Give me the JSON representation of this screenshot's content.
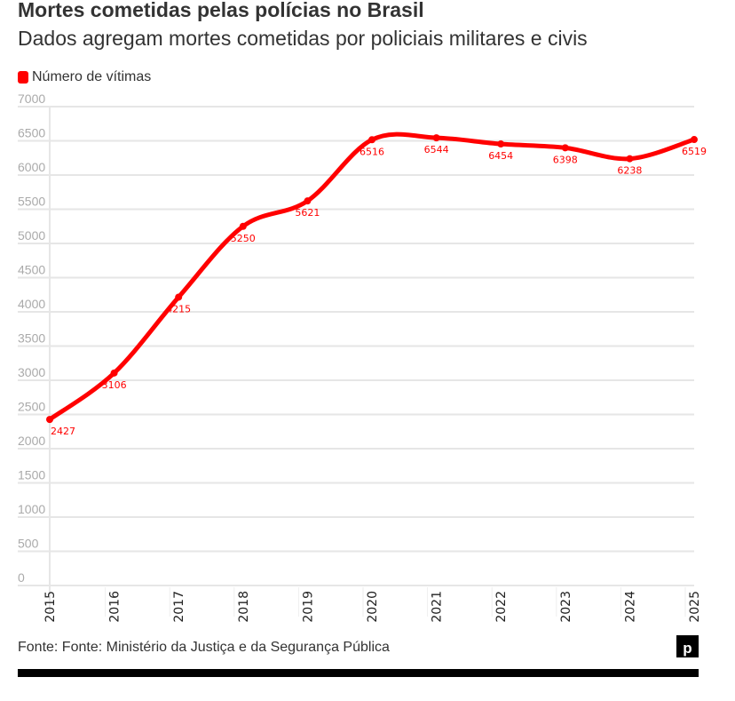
{
  "header": {
    "title": "Mortes cometidas pelas polícias no Brasil",
    "subtitle": "Dados agregam mortes cometidas por policiais militares e civis"
  },
  "legend": {
    "label": "Número de vítimas",
    "color": "#ff0000"
  },
  "footer": {
    "source": "Fonte: Fonte: Ministério da Justiça e da Segurança Pública",
    "logo": "p"
  },
  "chart_data": {
    "type": "line",
    "title": "Mortes cometidas pelas polícias no Brasil",
    "xlabel": "",
    "ylabel": "",
    "x": [
      "2015",
      "2016",
      "2017",
      "2018",
      "2019",
      "2020",
      "2021",
      "2022",
      "2023",
      "2024",
      "2025"
    ],
    "series": [
      {
        "name": "Número de vítimas",
        "color": "#ff0000",
        "values": [
          2427,
          3106,
          4215,
          5250,
          5621,
          6516,
          6544,
          6454,
          6398,
          6238,
          6519
        ]
      }
    ],
    "yticks": [
      0,
      500,
      1000,
      1500,
      2000,
      2500,
      3000,
      3500,
      4000,
      4500,
      5000,
      5500,
      6000,
      6500,
      7000
    ],
    "ylim": [
      0,
      7000
    ],
    "grid": true,
    "legend_position": "top-left"
  }
}
